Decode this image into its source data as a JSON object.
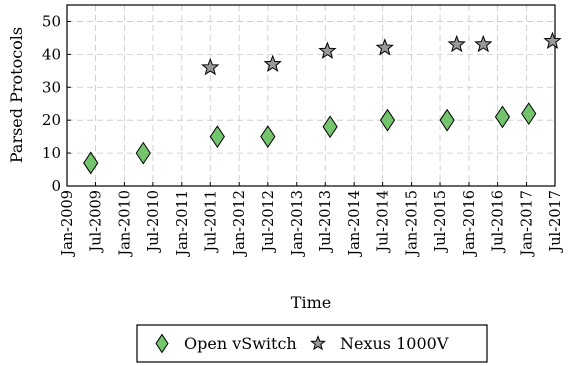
{
  "chart_data": {
    "type": "scatter",
    "xlabel": "Time",
    "ylabel": "Parsed Protocols",
    "ylim": [
      0,
      55
    ],
    "yticks": [
      0,
      10,
      20,
      30,
      40,
      50
    ],
    "xlim": [
      "2009-01-01",
      "2017-07-01"
    ],
    "xtick_labels": [
      "Jan-2009",
      "Jul-2009",
      "Jan-2010",
      "Jul-2010",
      "Jan-2011",
      "Jul-2011",
      "Jan-2012",
      "Jul-2012",
      "Jan-2013",
      "Jul-2013",
      "Jan-2014",
      "Jul-2014",
      "Jan-2015",
      "Jul-2015",
      "Jan-2016",
      "Jul-2016",
      "Jan-2017",
      "Jul-2017"
    ],
    "xtick_dates": [
      "2009-01-01",
      "2009-07-01",
      "2010-01-01",
      "2010-07-01",
      "2011-01-01",
      "2011-07-01",
      "2012-01-01",
      "2012-07-01",
      "2013-01-01",
      "2013-07-01",
      "2014-01-01",
      "2014-07-01",
      "2015-01-01",
      "2015-07-01",
      "2016-01-01",
      "2016-07-01",
      "2017-01-01",
      "2017-07-01"
    ],
    "grid": true,
    "legend_placement": "bottom",
    "series": [
      {
        "name": "Open vSwitch",
        "marker": "diamond",
        "color": "#73c46d",
        "points": [
          {
            "x": "2009-06-01",
            "y": 7
          },
          {
            "x": "2010-05-01",
            "y": 10
          },
          {
            "x": "2011-08-15",
            "y": 15
          },
          {
            "x": "2012-07-01",
            "y": 15
          },
          {
            "x": "2013-08-01",
            "y": 18
          },
          {
            "x": "2014-08-01",
            "y": 20
          },
          {
            "x": "2015-08-15",
            "y": 20
          },
          {
            "x": "2016-08-01",
            "y": 21
          },
          {
            "x": "2017-01-15",
            "y": 22
          }
        ]
      },
      {
        "name": "Nexus 1000V",
        "marker": "star",
        "color": "#999999",
        "points": [
          {
            "x": "2011-07-01",
            "y": 36
          },
          {
            "x": "2012-08-01",
            "y": 37
          },
          {
            "x": "2013-07-15",
            "y": 41
          },
          {
            "x": "2014-07-15",
            "y": 42
          },
          {
            "x": "2015-10-15",
            "y": 43
          },
          {
            "x": "2016-04-01",
            "y": 43
          },
          {
            "x": "2017-06-15",
            "y": 44
          }
        ]
      }
    ]
  }
}
